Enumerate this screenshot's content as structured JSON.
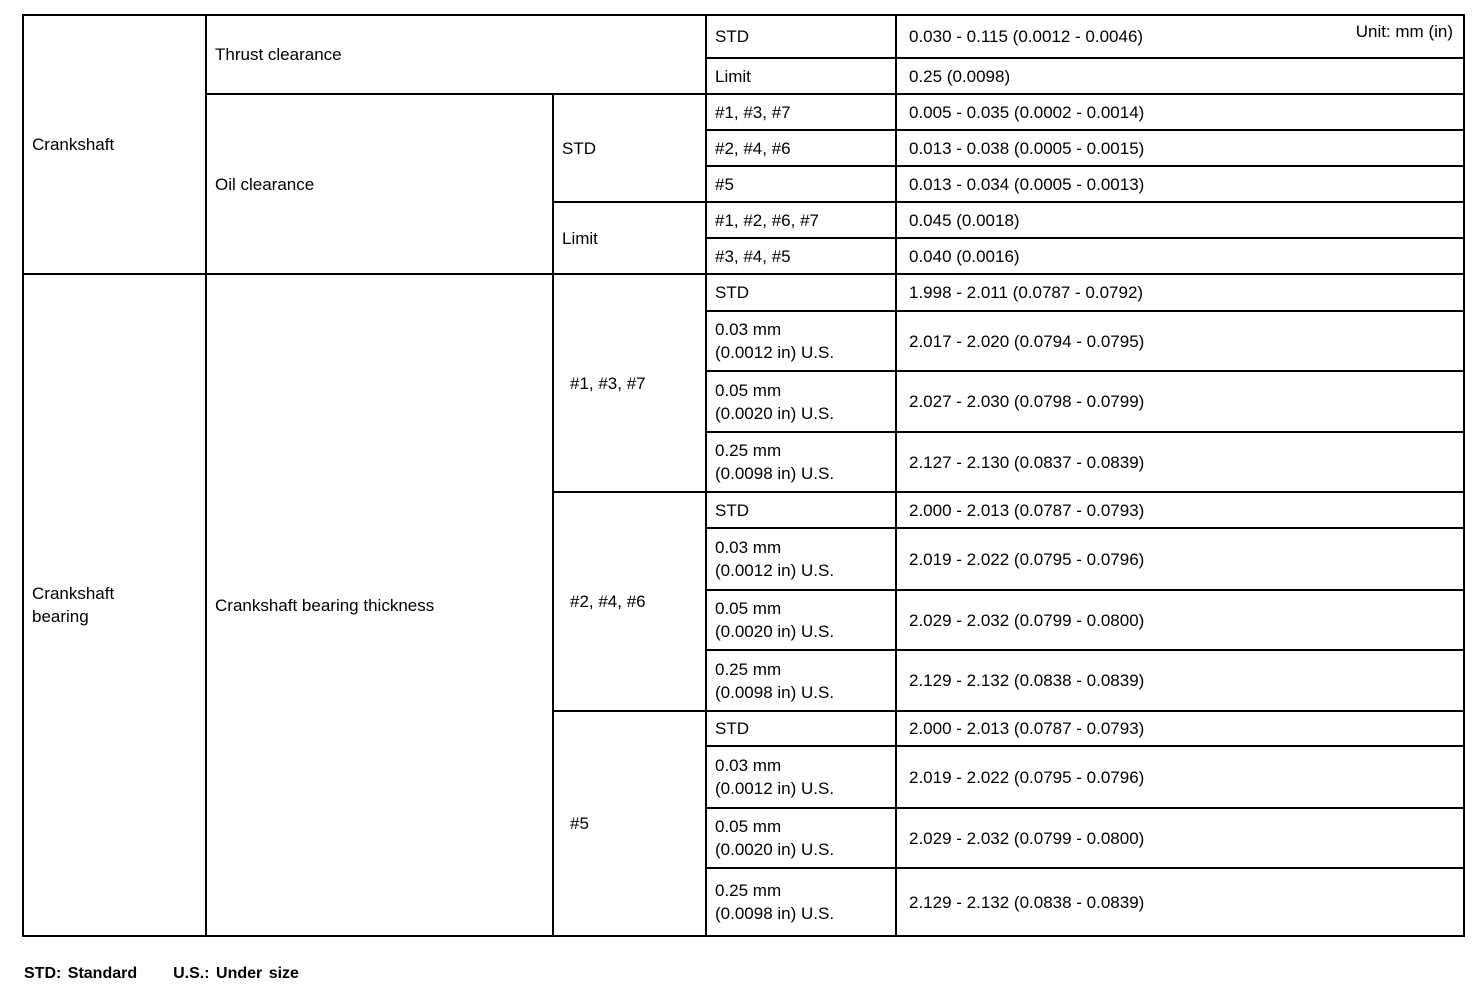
{
  "unit_label": "Unit: mm (in)",
  "crankshaft": {
    "label": "Crankshaft",
    "thrust": {
      "label": "Thrust clearance",
      "std_label": "STD",
      "std_value": "0.030 - 0.115 (0.0012 - 0.0046)",
      "limit_label": "Limit",
      "limit_value": "0.25 (0.0098)"
    },
    "oil": {
      "label": "Oil clearance",
      "std_label": "STD",
      "std_rows": [
        {
          "journals": "#1, #3, #7",
          "value": "0.005 - 0.035 (0.0002 - 0.0014)"
        },
        {
          "journals": "#2, #4, #6",
          "value": "0.013 - 0.038 (0.0005 - 0.0015)"
        },
        {
          "journals": "#5",
          "value": "0.013 - 0.034 (0.0005 - 0.0013)"
        }
      ],
      "limit_label": "Limit",
      "limit_rows": [
        {
          "journals": "#1, #2, #6, #7",
          "value": "0.045 (0.0018)"
        },
        {
          "journals": "#3, #4, #5",
          "value": "0.040 (0.0016)"
        }
      ]
    }
  },
  "bearing": {
    "label": "Crankshaft bearing",
    "item": "Crankshaft bearing thickness",
    "groups": [
      {
        "journals": "#1, #3, #7",
        "rows": [
          {
            "size": "STD",
            "value": "1.998 - 2.011 (0.0787 - 0.0792)"
          },
          {
            "size_mm": "0.03 mm",
            "size_in": "(0.0012 in) U.S.",
            "value": "2.017 - 2.020 (0.0794 - 0.0795)"
          },
          {
            "size_mm": "0.05 mm",
            "size_in": "(0.0020 in) U.S.",
            "value": "2.027 - 2.030 (0.0798 - 0.0799)"
          },
          {
            "size_mm": "0.25 mm",
            "size_in": "(0.0098 in) U.S.",
            "value": "2.127 - 2.130 (0.0837 - 0.0839)"
          }
        ]
      },
      {
        "journals": "#2, #4, #6",
        "rows": [
          {
            "size": "STD",
            "value": "2.000 - 2.013 (0.0787 - 0.0793)"
          },
          {
            "size_mm": "0.03 mm",
            "size_in": "(0.0012 in) U.S.",
            "value": "2.019 - 2.022 (0.0795 - 0.0796)"
          },
          {
            "size_mm": "0.05 mm",
            "size_in": "(0.0020 in) U.S.",
            "value": "2.029 - 2.032 (0.0799 - 0.0800)"
          },
          {
            "size_mm": "0.25 mm",
            "size_in": "(0.0098 in) U.S.",
            "value": "2.129 - 2.132 (0.0838 - 0.0839)"
          }
        ]
      },
      {
        "journals": "#5",
        "rows": [
          {
            "size": "STD",
            "value": "2.000 - 2.013 (0.0787 - 0.0793)"
          },
          {
            "size_mm": "0.03 mm",
            "size_in": "(0.0012 in) U.S.",
            "value": "2.019 - 2.022 (0.0795 - 0.0796)"
          },
          {
            "size_mm": "0.05 mm",
            "size_in": "(0.0020 in) U.S.",
            "value": "2.029 - 2.032 (0.0799 - 0.0800)"
          },
          {
            "size_mm": "0.25 mm",
            "size_in": "(0.0098 in) U.S.",
            "value": "2.129 - 2.132 (0.0838 - 0.0839)"
          }
        ]
      }
    ]
  },
  "footer": {
    "std": "STD: Standard",
    "us": "U.S.: Under size"
  }
}
